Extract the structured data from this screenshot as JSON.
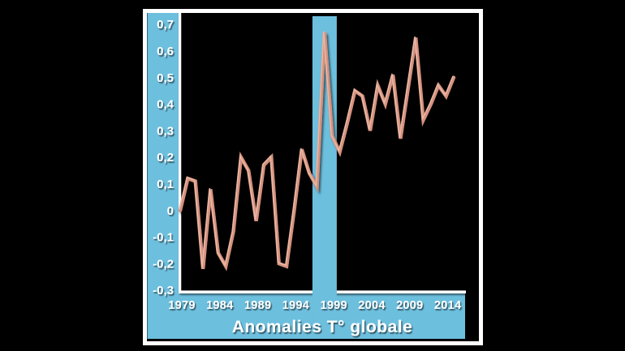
{
  "chart_data": {
    "type": "line",
    "title": "Anomalies T° globale",
    "x": [
      1979,
      1980,
      1981,
      1982,
      1983,
      1984,
      1985,
      1986,
      1987,
      1988,
      1989,
      1990,
      1991,
      1992,
      1993,
      1994,
      1995,
      1996,
      1997,
      1998,
      1999,
      2000,
      2001,
      2002,
      2003,
      2004,
      2005,
      2006,
      2007,
      2008,
      2009,
      2010,
      2011,
      2012,
      2013,
      2014,
      2015
    ],
    "values": [
      0.0,
      0.12,
      0.11,
      -0.22,
      0.08,
      -0.16,
      -0.21,
      -0.08,
      0.2,
      0.15,
      -0.04,
      0.17,
      0.2,
      -0.2,
      -0.21,
      0.0,
      0.23,
      0.14,
      0.09,
      0.67,
      0.28,
      0.22,
      0.33,
      0.45,
      0.43,
      0.3,
      0.47,
      0.4,
      0.51,
      0.27,
      0.46,
      0.65,
      0.34,
      0.4,
      0.47,
      0.43,
      0.5
    ],
    "xlabel": "",
    "ylabel": "",
    "xlim": [
      1979,
      2015
    ],
    "ylim": [
      -0.3,
      0.7
    ],
    "grid": false,
    "legend": false,
    "decimal_separator": ",",
    "x_ticks": [
      {
        "label": "1979",
        "value": 1979
      },
      {
        "label": "1984",
        "value": 1984
      },
      {
        "label": "1989",
        "value": 1989
      },
      {
        "label": "1994",
        "value": 1994
      },
      {
        "label": "1999",
        "value": 1999
      },
      {
        "label": "2004",
        "value": 2004
      },
      {
        "label": "2009",
        "value": 2009
      },
      {
        "label": "2014",
        "value": 2014
      }
    ],
    "y_ticks": [
      {
        "label": "0,7",
        "value": 0.7
      },
      {
        "label": "0,6",
        "value": 0.6
      },
      {
        "label": "0,5",
        "value": 0.5
      },
      {
        "label": "0,4",
        "value": 0.4
      },
      {
        "label": "0,3",
        "value": 0.3
      },
      {
        "label": "0,2",
        "value": 0.2
      },
      {
        "label": "0,1",
        "value": 0.1
      },
      {
        "label": "0",
        "value": 0.0
      },
      {
        "label": "-0,1",
        "value": -0.1
      },
      {
        "label": "-0,2",
        "value": -0.2
      },
      {
        "label": "-0,3",
        "value": -0.3
      }
    ],
    "highlight_band": {
      "start_year": 1996.4,
      "end_year": 1999.6,
      "peak_year": 1998
    },
    "colors": {
      "background": "#000000",
      "frame": "#ffffff",
      "axis_band": "#6dbfde",
      "highlight_band": "#6dbfde",
      "line": "#d5917e",
      "line_highlight": "#ecc0ae",
      "text": "#ffffff"
    }
  }
}
